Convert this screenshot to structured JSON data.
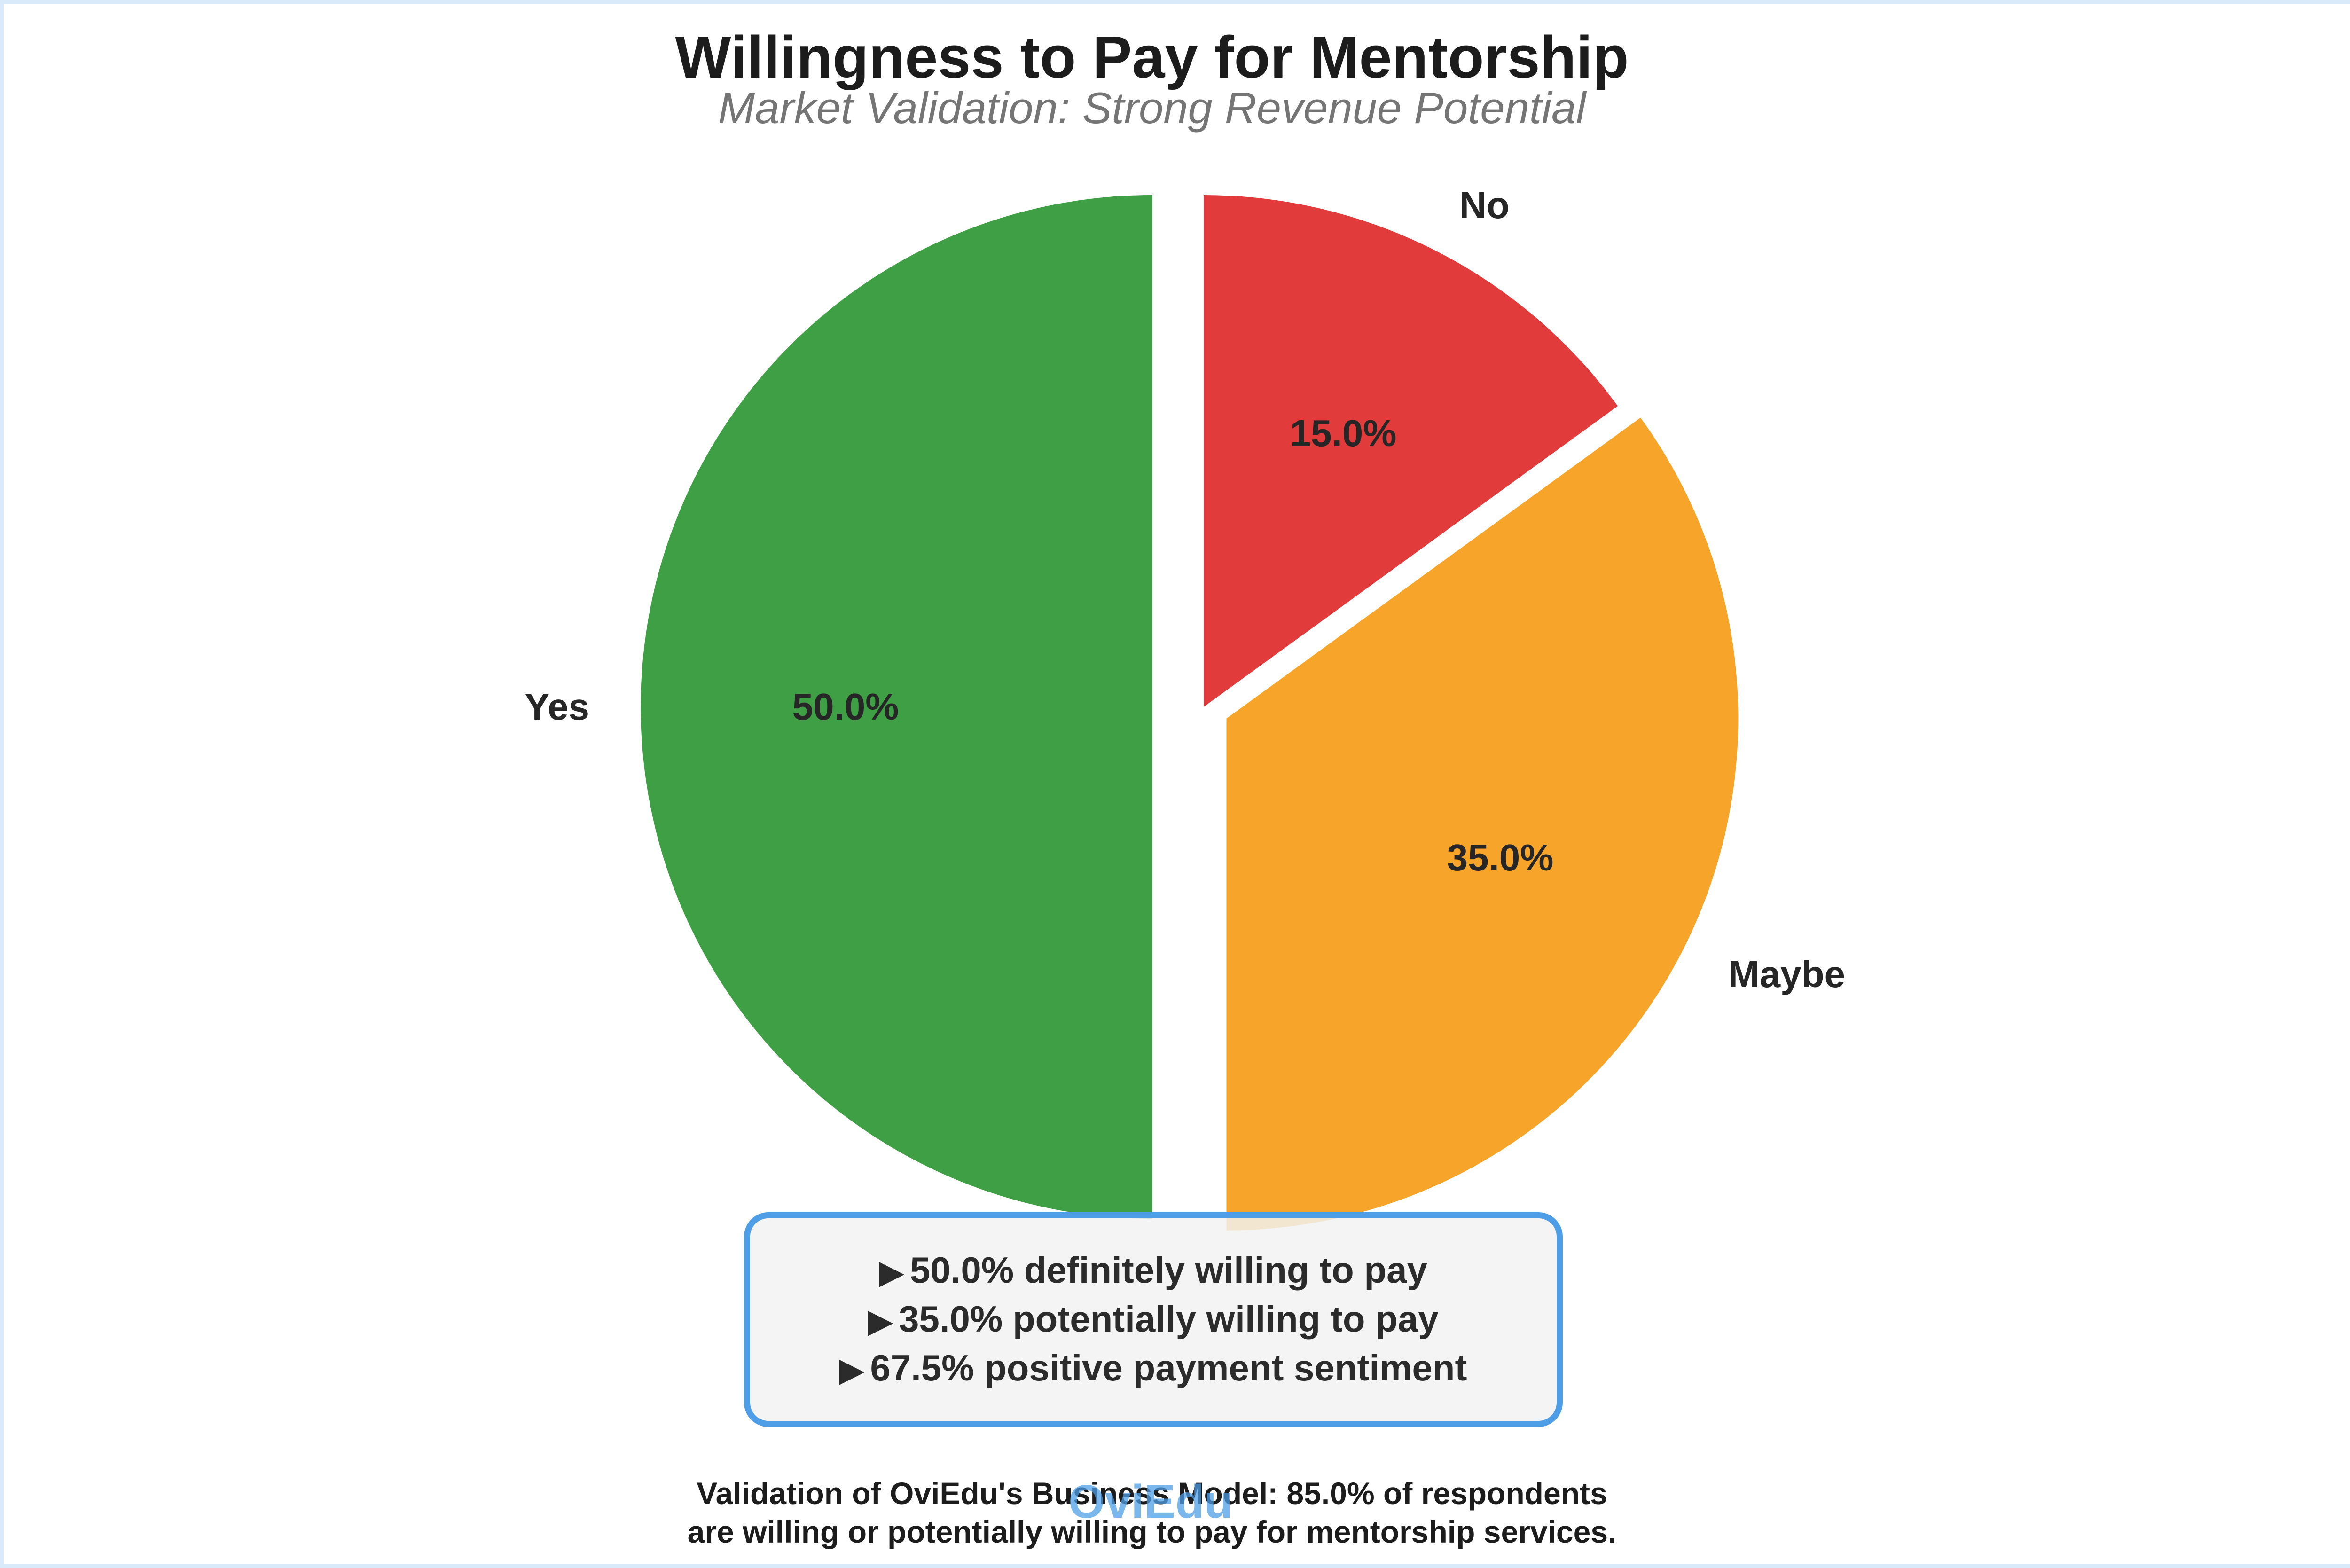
{
  "page": {
    "background": "#ffffff",
    "frame_border_color": "#d9eafa"
  },
  "header": {
    "title": "Willingness to Pay for Mentorship",
    "subtitle": "Market Validation: Strong Revenue Potential"
  },
  "chart_data": {
    "type": "pie",
    "title": "Willingness to Pay for Mentorship",
    "subtitle": "Market Validation: Strong Revenue Potential",
    "start_angle": 90,
    "counterclockwise": true,
    "legend_position": "none",
    "label_distance": 1.1,
    "pct_distance": 0.6,
    "slices": [
      {
        "label": "Yes",
        "value": 50.0,
        "pct_label": "50.0%",
        "color": "#3e9f44",
        "explode": 0.1
      },
      {
        "label": "Maybe",
        "value": 35.0,
        "pct_label": "35.0%",
        "color": "#f6a52a",
        "explode": 0.05
      },
      {
        "label": "No",
        "value": 15.0,
        "pct_label": "15.0%",
        "color": "#e23b3b",
        "explode": 0.0
      }
    ]
  },
  "highlight_box": {
    "bullet": "▶",
    "border_color": "#4d9ee7",
    "lines": [
      "50.0% definitely willing to pay",
      "35.0% potentially willing to pay",
      "67.5% positive payment sentiment"
    ]
  },
  "caption": {
    "line1": "Validation of OviEdu's Business Model: 85.0% of respondents",
    "line2": "are willing or potentially willing to pay for mentorship services."
  },
  "watermark": {
    "text": "OviEdu",
    "color": "#4d9ee7"
  }
}
